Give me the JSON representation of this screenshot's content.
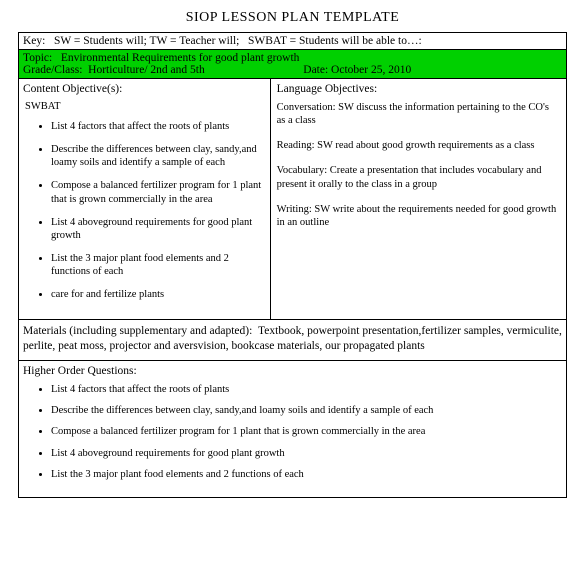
{
  "title": "SIOP LESSON PLAN TEMPLATE",
  "key_row": "Key:   SW = Students will; TW = Teacher will;   SWBAT = Students will be able to…:",
  "topic": {
    "topic_line": "Topic:   Environmental Requirements for good plant growth",
    "grade_line": "Grade/Class:  Horticulture/ 2nd and 5th",
    "date_line": "Date: October 25, 2010",
    "bg_color": "#00d000"
  },
  "content": {
    "heading": "Content Objective(s):",
    "swbat": "SWBAT",
    "bullets": [
      "List 4 factors that affect the roots of plants",
      "Describe the differences between clay, sandy,and loamy soils and identify a sample of each",
      "Compose a balanced fertilizer program for 1 plant that is grown commercially in the area",
      "List 4 aboveground requirements for good plant growth",
      "List the 3 major plant food elements and 2 functions of each",
      "care for and fertilize plants"
    ]
  },
  "language": {
    "heading": "Language Objectives:",
    "items": [
      "Conversation: SW discuss the information pertaining to the CO's as a class",
      "Reading: SW read about good growth requirements as a class",
      "Vocabulary: Create a presentation that includes vocabulary and present it orally to the class in a group",
      "Writing: SW write about the requirements needed for good growth in an outline"
    ]
  },
  "materials": {
    "label": "Materials (including supplementary and adapted):",
    "text": "  Textbook, powerpoint presentation,fertilizer samples, vermiculite, perlite, peat moss, projector and aversvision, bookcase materials, our propagated plants"
  },
  "hoq": {
    "heading": "Higher Order Questions:",
    "bullets": [
      "List 4 factors that affect the roots of plants",
      "Describe the differences between clay, sandy,and loamy soils and identify a sample of each",
      "Compose a balanced fertilizer program for 1 plant that is grown commercially in the area",
      "List 4 aboveground requirements for good plant growth",
      "List the 3 major plant food elements and 2 functions of each"
    ]
  }
}
